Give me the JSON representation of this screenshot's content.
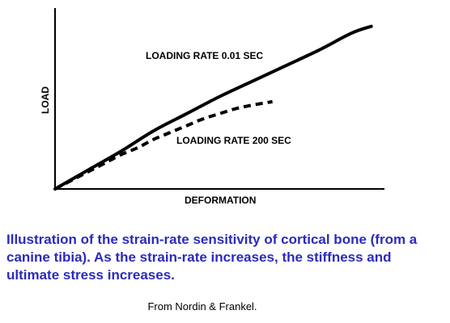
{
  "chart_data": {
    "type": "line",
    "xlabel": "DEFORMATION",
    "ylabel": "LOAD",
    "xlim": [
      0,
      100
    ],
    "ylim": [
      0,
      100
    ],
    "grid": false,
    "series": [
      {
        "name": "LOADING RATE 0.01 SEC",
        "style": "solid",
        "x": [
          0,
          10,
          20,
          30,
          40,
          50,
          60,
          70,
          80,
          90,
          96
        ],
        "y": [
          0,
          11,
          22,
          34,
          44,
          54,
          63,
          72,
          81,
          91,
          95
        ]
      },
      {
        "name": "LOADING RATE 200 SEC",
        "style": "dashed",
        "x": [
          0,
          5,
          10,
          15,
          20,
          25,
          30,
          35,
          40,
          45,
          50,
          55,
          60,
          66
        ],
        "y": [
          0,
          5,
          10,
          15,
          20,
          24,
          29,
          33,
          37,
          41,
          44,
          47,
          49,
          51
        ]
      }
    ],
    "colors": {
      "curves": "#000000",
      "axes": "#000000"
    }
  },
  "caption": "Illustration of the strain-rate sensitivity of cortical bone (from a canine tibia). As the strain-rate increases, the stiffness and ultimate stress increases.",
  "credit": "From Nordin & Frankel.",
  "colors": {
    "caption": "#2b2bbd"
  }
}
